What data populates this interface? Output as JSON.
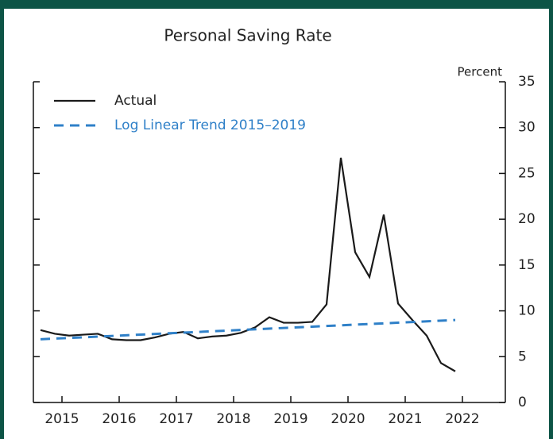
{
  "chart_data": {
    "type": "line",
    "title": "Personal Saving Rate",
    "y_axis_label": "Percent",
    "xlim": [
      2015,
      2023.25
    ],
    "ylim": [
      0,
      35
    ],
    "yticks": [
      0,
      5,
      10,
      15,
      20,
      25,
      30,
      35
    ],
    "xticks": [
      {
        "value": 2015.5,
        "label": "2015"
      },
      {
        "value": 2016.5,
        "label": "2016"
      },
      {
        "value": 2017.5,
        "label": "2017"
      },
      {
        "value": 2018.5,
        "label": "2018"
      },
      {
        "value": 2019.5,
        "label": "2019"
      },
      {
        "value": 2020.5,
        "label": "2020"
      },
      {
        "value": 2021.5,
        "label": "2021"
      },
      {
        "value": 2022.5,
        "label": "2022"
      }
    ],
    "legend": "top-left",
    "series": [
      {
        "name": "Actual",
        "color": "#1a1a1a",
        "dashed": false,
        "x": [
          2015.125,
          2015.375,
          2015.625,
          2015.875,
          2016.125,
          2016.375,
          2016.625,
          2016.875,
          2017.125,
          2017.375,
          2017.625,
          2017.875,
          2018.125,
          2018.375,
          2018.625,
          2018.875,
          2019.125,
          2019.375,
          2019.625,
          2019.875,
          2020.125,
          2020.375,
          2020.625,
          2020.875,
          2021.125,
          2021.375,
          2021.625,
          2021.875,
          2022.125,
          2022.375
        ],
        "values": [
          7.9,
          7.5,
          7.3,
          7.4,
          7.5,
          6.9,
          6.8,
          6.8,
          7.1,
          7.5,
          7.7,
          7.0,
          7.2,
          7.3,
          7.6,
          8.2,
          9.3,
          8.7,
          8.7,
          8.8,
          10.7,
          26.7,
          16.4,
          13.7,
          20.5,
          10.8,
          9.0,
          7.3,
          4.3,
          3.4
        ]
      },
      {
        "name": "Log Linear Trend 2015–2019",
        "color": "#2f80c8",
        "dashed": true,
        "x": [
          2015.125,
          2022.375
        ],
        "values": [
          6.9,
          9.0
        ]
      }
    ]
  }
}
